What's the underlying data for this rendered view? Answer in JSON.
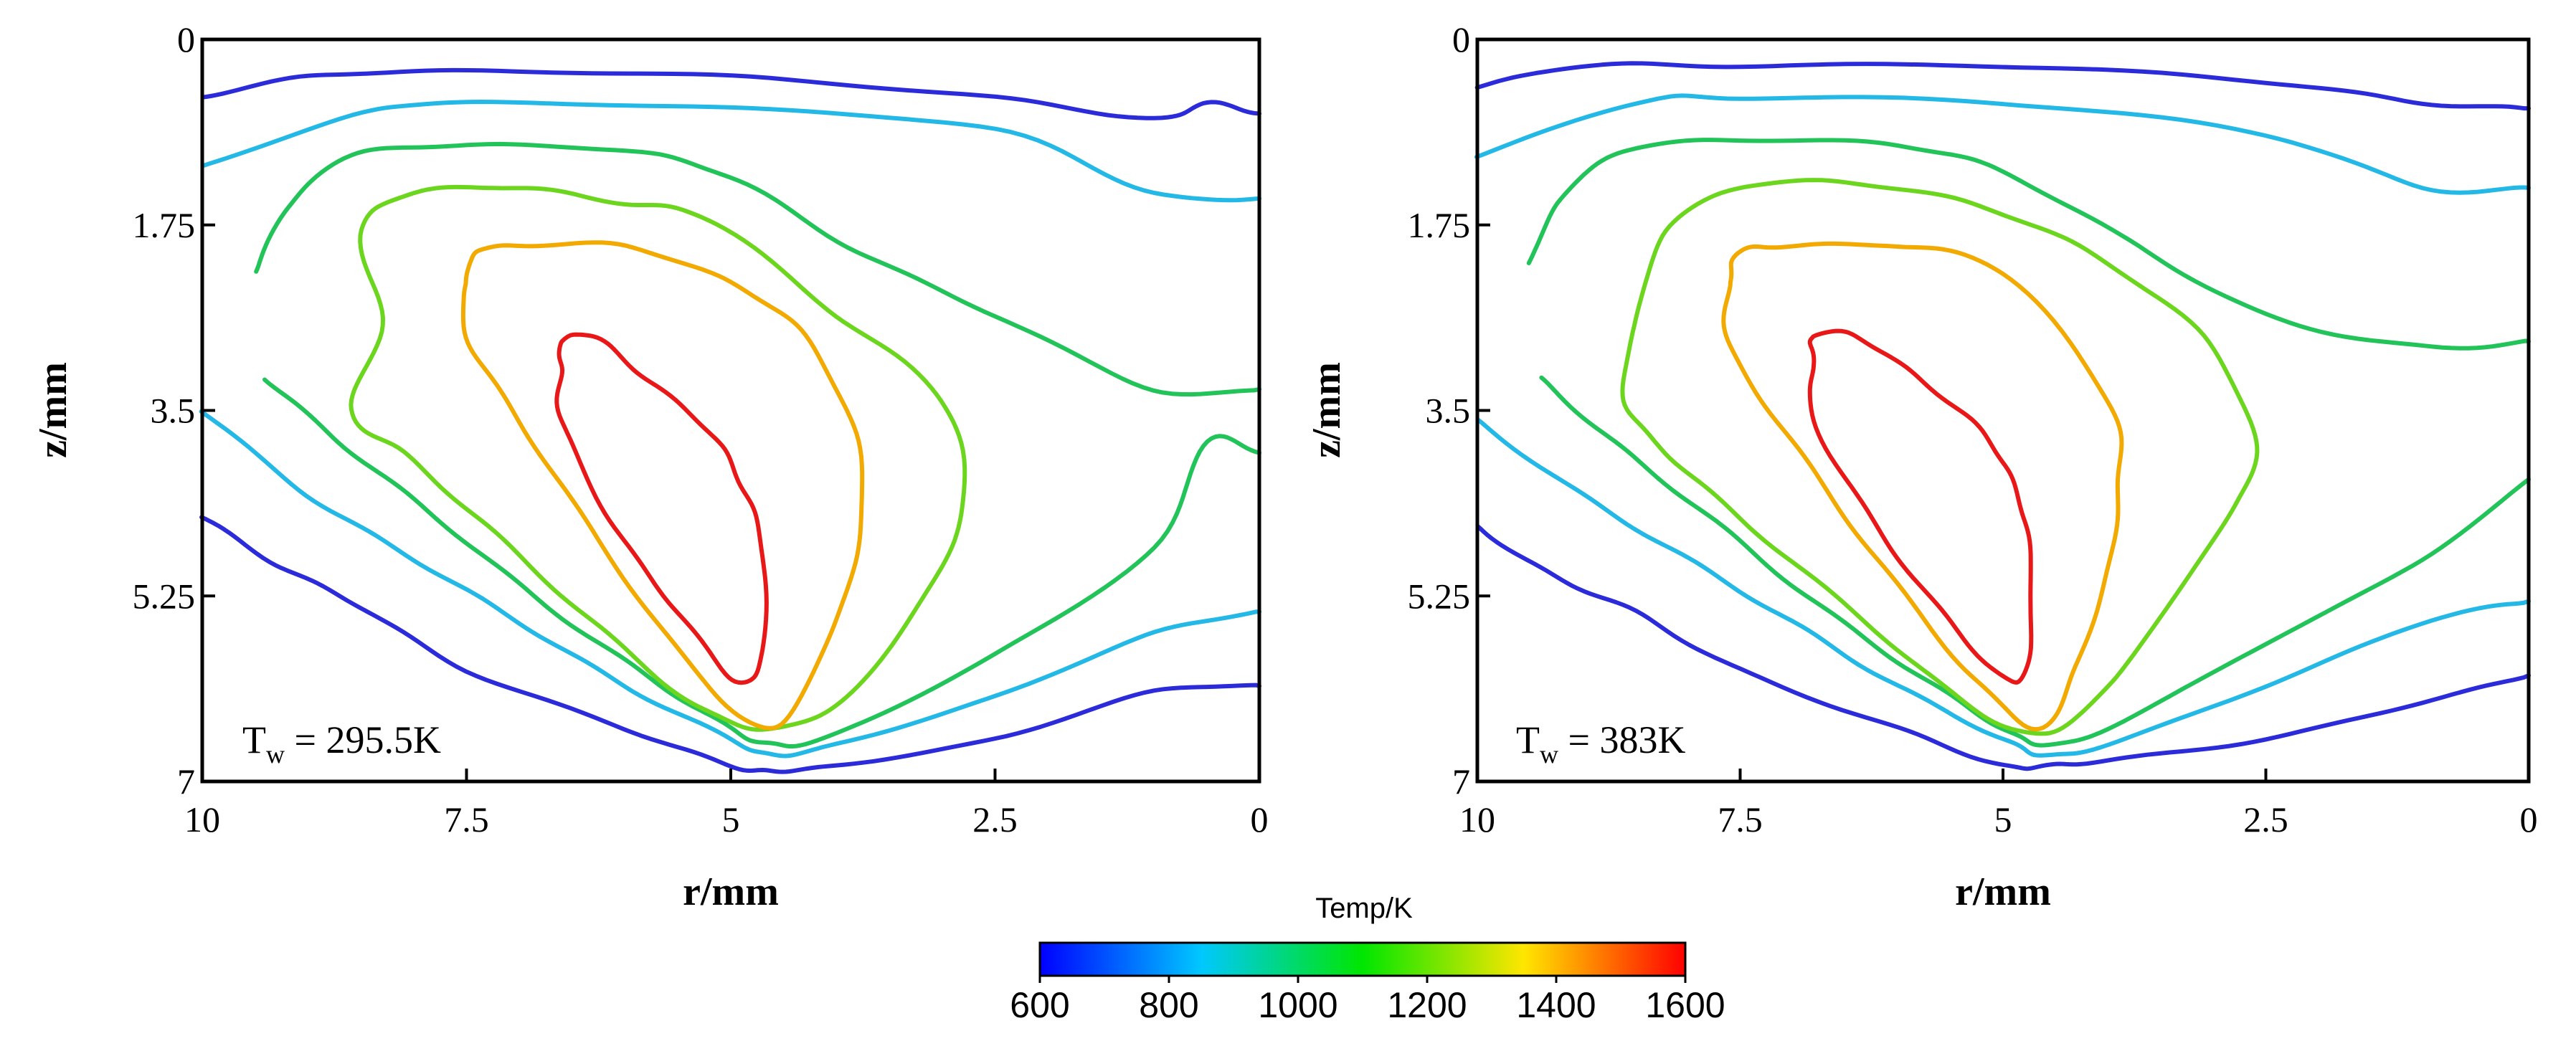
{
  "chart_data": [
    {
      "type": "contour",
      "title": "",
      "xlabel": "r/mm",
      "ylabel": "z/mm",
      "xlim": [
        10,
        0
      ],
      "ylim": [
        7,
        0
      ],
      "xticks": [
        "10",
        "7.5",
        "5",
        "2.5",
        "0"
      ],
      "yticks": [
        "0",
        "1.75",
        "3.5",
        "5.25",
        "7"
      ],
      "annotation": {
        "main": "T",
        "sub": "w",
        "rest": " = 295.5K"
      },
      "contour_levels": [
        {
          "level": 600,
          "color": "#2b2bd9",
          "series": [
            {
              "r": [
                10,
                9,
                7.5,
                5,
                2.5,
                1,
                0.5,
                0
              ],
              "z": [
                0.55,
                0.35,
                0.3,
                0.35,
                0.55,
                0.75,
                0.6,
                0.7
              ]
            },
            {
              "r": [
                10,
                9.3,
                8.5,
                7.5,
                6,
                5,
                4.6,
                4,
                2.5,
                1,
                0
              ],
              "z": [
                4.5,
                4.95,
                5.35,
                5.95,
                6.5,
                6.85,
                6.9,
                6.85,
                6.6,
                6.15,
                6.1
              ]
            }
          ]
        },
        {
          "level": 800,
          "color": "#23b8e6",
          "series": [
            {
              "r": [
                10,
                8.5,
                7.5,
                5,
                2.5,
                1,
                0
              ],
              "z": [
                1.2,
                0.7,
                0.6,
                0.65,
                0.85,
                1.45,
                1.5
              ]
            },
            {
              "r": [
                10,
                9,
                8,
                7,
                6,
                5,
                4.6,
                4,
                2.5,
                1,
                0
              ],
              "z": [
                3.5,
                4.3,
                4.9,
                5.5,
                6.1,
                6.6,
                6.75,
                6.65,
                6.2,
                5.6,
                5.4
              ]
            }
          ]
        },
        {
          "level": 1000,
          "color": "#22c45a",
          "series": [
            {
              "r": [
                9.5,
                9.2,
                8.6,
                7.5,
                6,
                5,
                3.8,
                2.5,
                1,
                0
              ],
              "z": [
                2.2,
                1.6,
                1.1,
                1.0,
                1.05,
                1.3,
                2.0,
                2.6,
                3.3,
                3.3
              ]
            },
            {
              "r": [
                9.4,
                8.7,
                7.8,
                6.8,
                5.8,
                5,
                4.6,
                4,
                2.5,
                1,
                0.5,
                0
              ],
              "z": [
                3.2,
                3.8,
                4.5,
                5.3,
                6.0,
                6.5,
                6.65,
                6.55,
                5.8,
                4.8,
                3.8,
                3.9
              ]
            }
          ]
        },
        {
          "level": 1200,
          "color": "#6cd61e",
          "closed": true,
          "r": [
            8.3,
            8.5,
            8.0,
            7.0,
            6.0,
            5.2,
            4.0,
            3.0,
            2.8,
            3.2,
            3.9,
            4.6,
            5.3,
            6.3,
            7.3,
            8.1,
            8.6
          ],
          "z": [
            2.7,
            1.8,
            1.45,
            1.4,
            1.55,
            1.7,
            2.6,
            3.4,
            4.4,
            5.3,
            6.2,
            6.5,
            6.3,
            5.5,
            4.6,
            3.9,
            3.5
          ]
        },
        {
          "level": 1400,
          "color": "#f2a900",
          "closed": true,
          "r": [
            7.5,
            7.4,
            7.0,
            6.0,
            5.0,
            4.3,
            3.8,
            3.8,
            4.1,
            4.6,
            5.3,
            6.2,
            7.0,
            7.5
          ],
          "z": [
            2.3,
            2.0,
            1.95,
            1.95,
            2.3,
            2.8,
            3.8,
            4.8,
            5.7,
            6.5,
            6.0,
            4.8,
            3.6,
            2.8
          ]
        },
        {
          "level": 1600,
          "color": "#e81818",
          "closed": true,
          "r": [
            6.6,
            6.3,
            5.8,
            5.2,
            4.9,
            4.7,
            4.7,
            4.95,
            5.5,
            6.1,
            6.6,
            6.6
          ],
          "z": [
            2.85,
            2.8,
            3.2,
            3.7,
            4.2,
            4.8,
            5.8,
            6.05,
            5.4,
            4.6,
            3.6,
            3.1
          ]
        }
      ]
    },
    {
      "type": "contour",
      "title": "",
      "xlabel": "r/mm",
      "ylabel": "z/mm",
      "xlim": [
        10,
        0
      ],
      "ylim": [
        7,
        0
      ],
      "xticks": [
        "10",
        "7.5",
        "5",
        "2.5",
        "0"
      ],
      "yticks": [
        "0",
        "1.75",
        "3.5",
        "5.25",
        "7"
      ],
      "annotation": {
        "main": "T",
        "sub": "w",
        "rest": " = 383K"
      },
      "contour_levels": [
        {
          "level": 600,
          "color": "#2b2bd9",
          "series": [
            {
              "r": [
                10,
                9,
                7.5,
                5,
                2.5,
                1,
                0
              ],
              "z": [
                0.45,
                0.25,
                0.25,
                0.25,
                0.4,
                0.6,
                0.65
              ]
            },
            {
              "r": [
                10,
                9.3,
                8.5,
                7.5,
                6,
                5,
                4.6,
                4,
                2.5,
                1,
                0
              ],
              "z": [
                4.6,
                5.05,
                5.4,
                5.95,
                6.5,
                6.85,
                6.85,
                6.8,
                6.6,
                6.25,
                6.0
              ]
            }
          ]
        },
        {
          "level": 800,
          "color": "#23b8e6",
          "series": [
            {
              "r": [
                10,
                8.5,
                7.5,
                5,
                2.5,
                1,
                0
              ],
              "z": [
                1.1,
                0.6,
                0.55,
                0.6,
                0.9,
                1.4,
                1.4
              ]
            },
            {
              "r": [
                10,
                9,
                8,
                7,
                6,
                5,
                4.6,
                4,
                2.5,
                1,
                0
              ],
              "z": [
                3.6,
                4.3,
                4.9,
                5.5,
                6.1,
                6.6,
                6.75,
                6.65,
                6.1,
                5.5,
                5.3
              ]
            }
          ]
        },
        {
          "level": 1000,
          "color": "#22c45a",
          "series": [
            {
              "r": [
                9.5,
                9.2,
                8.6,
                7.5,
                6,
                5,
                3.8,
                2.5,
                1,
                0
              ],
              "z": [
                2.1,
                1.5,
                1.05,
                0.95,
                1.0,
                1.25,
                1.9,
                2.6,
                2.9,
                2.85
              ]
            },
            {
              "r": [
                9.4,
                8.7,
                7.8,
                6.8,
                5.8,
                5,
                4.6,
                4,
                2.5,
                1,
                0
              ],
              "z": [
                3.2,
                3.8,
                4.5,
                5.3,
                6.0,
                6.5,
                6.65,
                6.5,
                5.7,
                4.9,
                4.15
              ]
            }
          ]
        },
        {
          "level": 1200,
          "color": "#6cd61e",
          "closed": true,
          "r": [
            8.5,
            8.2,
            7.5,
            6.5,
            5.3,
            4.2,
            3.1,
            2.6,
            2.8,
            3.4,
            4.0,
            4.6,
            5.3,
            6.3,
            7.4,
            8.2,
            8.6
          ],
          "z": [
            2.7,
            1.8,
            1.4,
            1.35,
            1.55,
            2.0,
            2.8,
            3.8,
            4.4,
            5.3,
            6.1,
            6.55,
            6.3,
            5.5,
            4.6,
            3.9,
            3.4
          ]
        },
        {
          "level": 1400,
          "color": "#f2a900",
          "closed": true,
          "r": [
            7.6,
            7.5,
            7.0,
            6.0,
            5.0,
            4.0,
            3.9,
            4.0,
            4.3,
            4.65,
            5.3,
            6.2,
            7.0,
            7.6
          ],
          "z": [
            2.3,
            2.0,
            1.95,
            1.95,
            2.2,
            3.4,
            4.2,
            5.0,
            5.9,
            6.5,
            6.0,
            4.9,
            3.8,
            2.9
          ]
        },
        {
          "level": 1600,
          "color": "#e81818",
          "closed": true,
          "r": [
            6.8,
            6.4,
            5.8,
            5.2,
            4.9,
            4.75,
            4.75,
            4.95,
            5.5,
            6.2,
            6.8,
            6.8
          ],
          "z": [
            2.8,
            2.8,
            3.2,
            3.7,
            4.2,
            4.8,
            5.8,
            6.05,
            5.5,
            4.6,
            3.6,
            3.1
          ]
        }
      ]
    }
  ],
  "colorbar": {
    "title": "Temp/K",
    "min": 600,
    "max": 1600,
    "ticks": [
      "600",
      "800",
      "1000",
      "1200",
      "1400",
      "1600"
    ],
    "colors": [
      "#0000ff",
      "#00c8ff",
      "#00e600",
      "#ffe600",
      "#ff0000"
    ]
  }
}
